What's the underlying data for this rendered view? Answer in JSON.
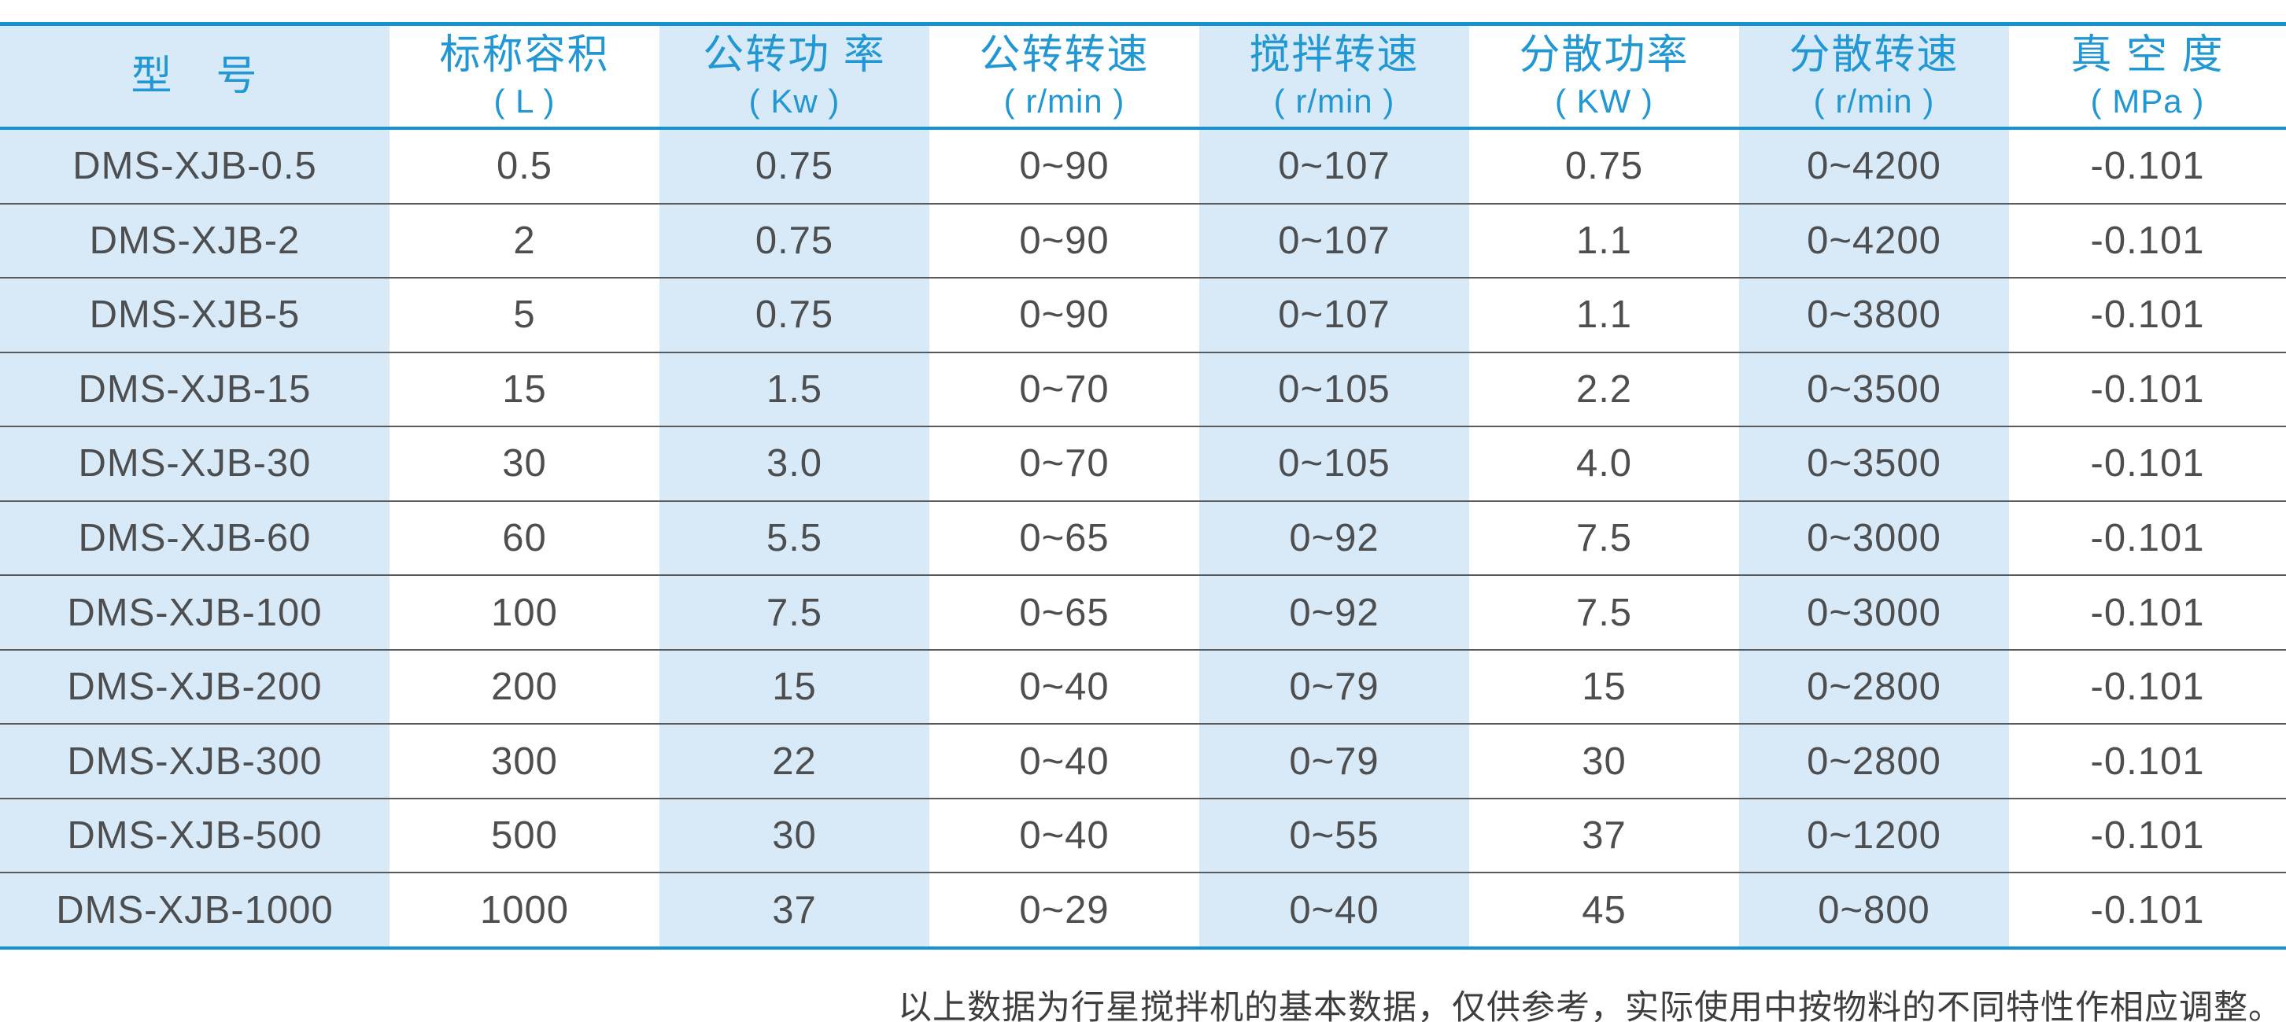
{
  "chart_data": {
    "type": "table",
    "columns": [
      {
        "title": "型　号",
        "unit": ""
      },
      {
        "title": "标称容积",
        "unit": "( L )"
      },
      {
        "title": "公转功 率",
        "unit": "( Kw )"
      },
      {
        "title": "公转转速",
        "unit": "( r/min )"
      },
      {
        "title": "搅拌转速",
        "unit": "( r/min )"
      },
      {
        "title": "分散功率",
        "unit": "( KW )"
      },
      {
        "title": "分散转速",
        "unit": "( r/min )"
      },
      {
        "title": "真 空 度",
        "unit": "( MPa )"
      }
    ],
    "rows": [
      [
        "DMS-XJB-0.5",
        "0.5",
        "0.75",
        "0~90",
        "0~107",
        "0.75",
        "0~4200",
        "-0.101"
      ],
      [
        "DMS-XJB-2",
        "2",
        "0.75",
        "0~90",
        "0~107",
        "1.1",
        "0~4200",
        "-0.101"
      ],
      [
        "DMS-XJB-5",
        "5",
        "0.75",
        "0~90",
        "0~107",
        "1.1",
        "0~3800",
        "-0.101"
      ],
      [
        "DMS-XJB-15",
        "15",
        "1.5",
        "0~70",
        "0~105",
        "2.2",
        "0~3500",
        "-0.101"
      ],
      [
        "DMS-XJB-30",
        "30",
        "3.0",
        "0~70",
        "0~105",
        "4.0",
        "0~3500",
        "-0.101"
      ],
      [
        "DMS-XJB-60",
        "60",
        "5.5",
        "0~65",
        "0~92",
        "7.5",
        "0~3000",
        "-0.101"
      ],
      [
        "DMS-XJB-100",
        "100",
        "7.5",
        "0~65",
        "0~92",
        "7.5",
        "0~3000",
        "-0.101"
      ],
      [
        "DMS-XJB-200",
        "200",
        "15",
        "0~40",
        "0~79",
        "15",
        "0~2800",
        "-0.101"
      ],
      [
        "DMS-XJB-300",
        "300",
        "22",
        "0~40",
        "0~79",
        "30",
        "0~2800",
        "-0.101"
      ],
      [
        "DMS-XJB-500",
        "500",
        "30",
        "0~40",
        "0~55",
        "37",
        "0~1200",
        "-0.101"
      ],
      [
        "DMS-XJB-1000",
        "1000",
        "37",
        "0~29",
        "0~40",
        "45",
        "0~800",
        "-0.101"
      ]
    ]
  },
  "footer": {
    "note": "以上数据为行星搅拌机的基本数据，仅供参考，实际使用中按物料的不同特性作相应调整。"
  },
  "colors": {
    "accent_blue": "#1492d2",
    "band_blue": "#d8eaf7",
    "header_text_blue": "#2197d3",
    "body_text": "#4d4e50",
    "divider_gray": "#595a5c"
  }
}
